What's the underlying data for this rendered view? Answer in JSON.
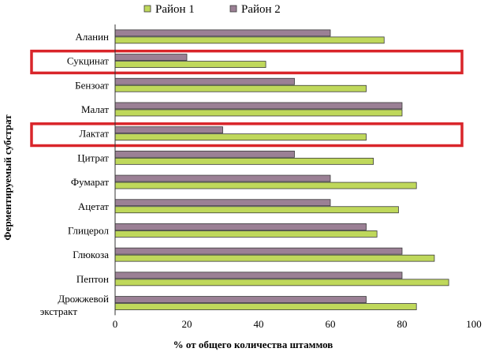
{
  "chart_data": {
    "type": "bar",
    "orientation": "horizontal",
    "categories": [
      "Аланин",
      "Сукцинат",
      "Бензоат",
      "Малат",
      "Лактат",
      "Цитрат",
      "Фумарат",
      "Ацетат",
      "Глицерол",
      "Глюкоза",
      "Пептон",
      "Дрожжевой экстракт"
    ],
    "category_lines": [
      [
        "Аланин"
      ],
      [
        "Сукцинат"
      ],
      [
        "Бензоат"
      ],
      [
        "Малат"
      ],
      [
        "Лактат"
      ],
      [
        "Цитрат"
      ],
      [
        "Фумарат"
      ],
      [
        "Ацетат"
      ],
      [
        "Глицерол"
      ],
      [
        "Глюкоза"
      ],
      [
        "Пептон"
      ],
      [
        "Дрожжевой",
        "экстракт"
      ]
    ],
    "series": [
      {
        "name": "Район 1",
        "color": "#bfd85b",
        "values": [
          75,
          42,
          70,
          80,
          70,
          72,
          84,
          79,
          73,
          89,
          93,
          84
        ]
      },
      {
        "name": "Район 2",
        "color": "#9b8095",
        "values": [
          60,
          20,
          50,
          80,
          30,
          50,
          60,
          60,
          70,
          80,
          80,
          70
        ]
      }
    ],
    "xlabel": "% от общего количества штаммов",
    "ylabel": "Ферментируемый субстрат",
    "xlim": [
      0,
      100
    ],
    "xticks": [
      0,
      20,
      40,
      60,
      80,
      100
    ],
    "grid": false,
    "legend": "top",
    "highlighted_categories": [
      "Сукцинат",
      "Лактат"
    ],
    "highlight_color": "#d9252a"
  }
}
